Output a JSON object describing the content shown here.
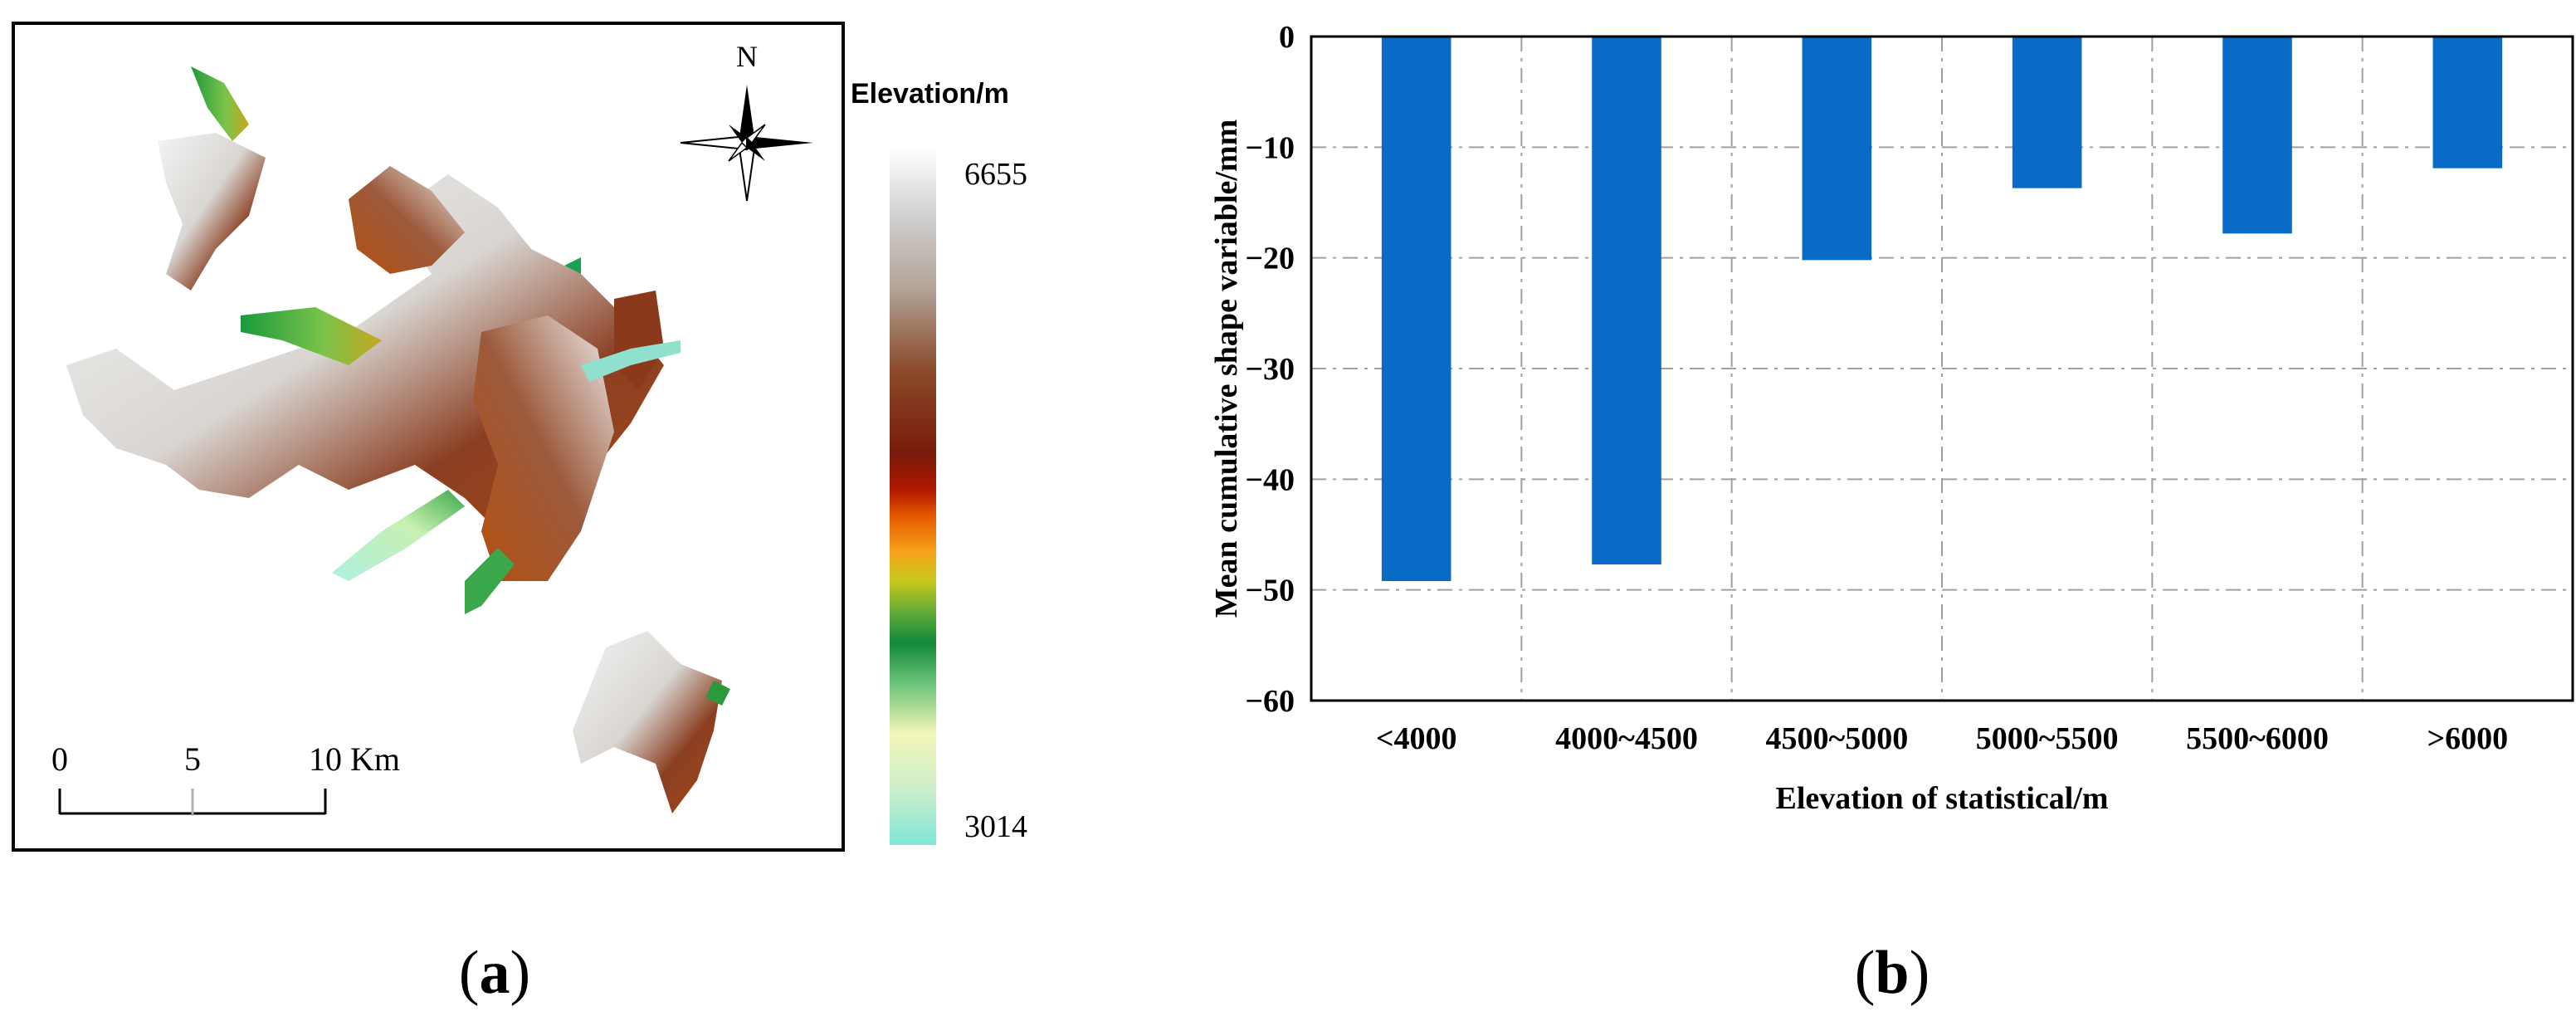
{
  "panel_a": {
    "label": "a",
    "legend": {
      "title": "Elevation/m",
      "max": "6655",
      "min": "3014"
    },
    "north_arrow": {
      "letter": "N",
      "icon": "north-arrow-icon"
    },
    "scale_bar": {
      "ticks": [
        "0",
        "5",
        "10"
      ],
      "unit": "Km"
    }
  },
  "panel_b": {
    "label": "b"
  },
  "chart_data": {
    "type": "bar",
    "categories": [
      "<4000",
      "4000~4500",
      "4500~5000",
      "5000~5500",
      "5500~6000",
      ">6000"
    ],
    "values": [
      -49.2,
      -47.7,
      -20.2,
      -13.7,
      -17.8,
      -11.9
    ],
    "title": "",
    "xlabel": "Elevation of statistical/m",
    "ylabel": "Mean cumulative shape variable/mm",
    "ylim": [
      -60,
      0
    ],
    "yticks": [
      "0",
      "−10",
      "−20",
      "−30",
      "−40",
      "−50",
      "−60"
    ],
    "grid": true,
    "bar_color": "#0A6BC6"
  }
}
